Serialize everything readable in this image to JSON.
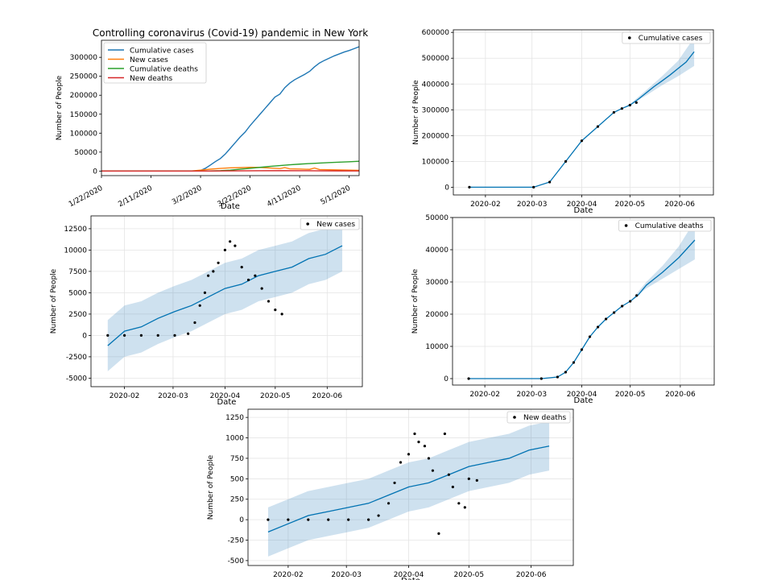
{
  "chart_data": [
    {
      "id": "overview",
      "type": "line",
      "title": "Controlling coronavirus (Covid-19) pandemic in New York",
      "xlabel": "Date",
      "ylabel": "Number of People",
      "xlim": [
        0,
        104
      ],
      "ylim": [
        -12000,
        345000
      ],
      "yticks": [
        0,
        50000,
        100000,
        150000,
        200000,
        250000,
        300000
      ],
      "xticks": [
        {
          "day": 0,
          "label": "1/22/2020"
        },
        {
          "day": 20,
          "label": "2/11/2020"
        },
        {
          "day": 40,
          "label": "3/2/2020"
        },
        {
          "day": 60,
          "label": "3/22/2020"
        },
        {
          "day": 80,
          "label": "4/11/2020"
        },
        {
          "day": 100,
          "label": "5/1/2020"
        }
      ],
      "legend": [
        "Cumulative cases",
        "New cases",
        "Cumulative deaths",
        "New deaths"
      ],
      "series": [
        {
          "name": "Cumulative cases",
          "color": "#1f77b4",
          "x": [
            0,
            36,
            38,
            40,
            42,
            44,
            46,
            48,
            50,
            52,
            54,
            56,
            58,
            60,
            62,
            64,
            66,
            68,
            70,
            72,
            74,
            76,
            78,
            80,
            82,
            84,
            86,
            88,
            90,
            92,
            94,
            96,
            98,
            100,
            102,
            104
          ],
          "y": [
            0,
            0,
            100,
            1500,
            7500,
            16000,
            25000,
            33000,
            45000,
            60000,
            75000,
            90000,
            103000,
            120000,
            135000,
            150000,
            165000,
            180000,
            195000,
            203000,
            220000,
            232000,
            241000,
            248000,
            255000,
            263000,
            275000,
            285000,
            292000,
            298000,
            304000,
            309000,
            314000,
            318000,
            323000,
            328000
          ]
        },
        {
          "name": "New cases",
          "color": "#ff7f0e",
          "x": [
            0,
            36,
            40,
            44,
            48,
            52,
            56,
            60,
            64,
            68,
            72,
            74,
            76,
            80,
            84,
            86,
            88,
            92,
            96,
            100,
            104
          ],
          "y": [
            0,
            0,
            2500,
            5000,
            7000,
            8500,
            9000,
            10000,
            9500,
            8000,
            6500,
            9000,
            6000,
            5500,
            4500,
            8000,
            4000,
            3500,
            3000,
            2500,
            2000
          ]
        },
        {
          "name": "Cumulative deaths",
          "color": "#2ca02c",
          "x": [
            0,
            40,
            44,
            48,
            52,
            56,
            60,
            64,
            68,
            72,
            76,
            80,
            84,
            88,
            92,
            96,
            100,
            104
          ],
          "y": [
            0,
            0,
            200,
            1000,
            2500,
            4800,
            7300,
            9800,
            12300,
            14500,
            16500,
            18300,
            19800,
            21000,
            22500,
            23500,
            24500,
            25800
          ]
        },
        {
          "name": "New deaths",
          "color": "#d62728",
          "x": [
            0,
            40,
            48,
            56,
            64,
            72,
            80,
            88,
            96,
            104
          ],
          "y": [
            0,
            0,
            300,
            700,
            900,
            1000,
            900,
            700,
            500,
            400
          ]
        }
      ]
    },
    {
      "id": "forecast-cumulative-cases",
      "type": "line",
      "title": "",
      "xlabel": "Date",
      "ylabel": "Number of People",
      "xlim": [
        -10,
        152
      ],
      "ylim": [
        -30000,
        610000
      ],
      "yticks": [
        0,
        100000,
        200000,
        300000,
        400000,
        500000,
        600000
      ],
      "xticks": [
        {
          "day": 10,
          "label": "2020-02"
        },
        {
          "day": 39,
          "label": "2020-03"
        },
        {
          "day": 70,
          "label": "2020-04"
        },
        {
          "day": 100,
          "label": "2020-05"
        },
        {
          "day": 131,
          "label": "2020-06"
        }
      ],
      "legend": [
        "Cumulative cases"
      ],
      "observed": {
        "x": [
          0,
          40,
          50,
          60,
          70,
          80,
          90,
          95,
          100,
          104
        ],
        "y": [
          0,
          0,
          20000,
          100000,
          180000,
          235000,
          290000,
          305000,
          318000,
          328000
        ]
      },
      "forecast": {
        "x": [
          0,
          40,
          50,
          60,
          70,
          80,
          90,
          95,
          100,
          105,
          110,
          115,
          120,
          125,
          130,
          135,
          140
        ],
        "y": [
          0,
          0,
          20000,
          100000,
          180000,
          235000,
          290000,
          305000,
          318000,
          340000,
          365000,
          390000,
          412000,
          435000,
          460000,
          485000,
          525000
        ]
      },
      "interval": {
        "x": [
          90,
          100,
          110,
          120,
          130,
          140
        ],
        "lower": [
          290000,
          318000,
          355000,
          395000,
          430000,
          470000
        ],
        "upper": [
          290000,
          322000,
          375000,
          430000,
          490000,
          580000
        ]
      }
    },
    {
      "id": "forecast-new-cases",
      "type": "line",
      "title": "",
      "xlabel": "Date",
      "ylabel": "Number of People",
      "xlim": [
        -10,
        152
      ],
      "ylim": [
        -6000,
        14000
      ],
      "yticks": [
        -5000,
        -2500,
        0,
        2500,
        5000,
        7500,
        10000,
        12500
      ],
      "xticks": [
        {
          "day": 10,
          "label": "2020-02"
        },
        {
          "day": 39,
          "label": "2020-03"
        },
        {
          "day": 70,
          "label": "2020-04"
        },
        {
          "day": 100,
          "label": "2020-05"
        },
        {
          "day": 131,
          "label": "2020-06"
        }
      ],
      "legend": [
        "New cases"
      ],
      "observed": {
        "x": [
          0,
          10,
          20,
          30,
          40,
          48,
          52,
          55,
          58,
          60,
          63,
          66,
          70,
          73,
          76,
          80,
          84,
          88,
          92,
          96,
          100,
          104
        ],
        "y": [
          0,
          0,
          0,
          0,
          0,
          200,
          1500,
          3500,
          5000,
          7000,
          7500,
          8500,
          10000,
          11000,
          10500,
          8000,
          6500,
          7000,
          5500,
          4000,
          3000,
          2500
        ]
      },
      "forecast": {
        "x": [
          0,
          10,
          20,
          30,
          40,
          50,
          60,
          70,
          80,
          90,
          100,
          110,
          120,
          130,
          140
        ],
        "y": [
          -1200,
          500,
          1000,
          2000,
          2800,
          3500,
          4500,
          5500,
          6000,
          7000,
          7500,
          8000,
          9000,
          9500,
          10500
        ]
      },
      "interval": {
        "x": [
          0,
          10,
          20,
          30,
          40,
          50,
          60,
          70,
          80,
          90,
          100,
          110,
          120,
          130,
          140
        ],
        "lower": [
          -4200,
          -2500,
          -2000,
          -1000,
          -200,
          500,
          1500,
          2500,
          3000,
          4000,
          4500,
          5000,
          6000,
          6500,
          7500
        ],
        "upper": [
          1800,
          3500,
          4000,
          5000,
          5800,
          6500,
          7500,
          8500,
          9000,
          10000,
          10500,
          11000,
          12000,
          12500,
          13500
        ]
      }
    },
    {
      "id": "forecast-cumulative-deaths",
      "type": "line",
      "title": "",
      "xlabel": "Date",
      "ylabel": "Number of People",
      "xlim": [
        -10,
        152
      ],
      "ylim": [
        -2000,
        50000
      ],
      "yticks": [
        0,
        10000,
        20000,
        30000,
        40000,
        50000
      ],
      "xticks": [
        {
          "day": 10,
          "label": "2020-02"
        },
        {
          "day": 39,
          "label": "2020-03"
        },
        {
          "day": 70,
          "label": "2020-04"
        },
        {
          "day": 100,
          "label": "2020-05"
        },
        {
          "day": 131,
          "label": "2020-06"
        }
      ],
      "legend": [
        "Cumulative deaths"
      ],
      "observed": {
        "x": [
          0,
          45,
          55,
          60,
          65,
          70,
          75,
          80,
          85,
          90,
          95,
          100,
          104
        ],
        "y": [
          0,
          0,
          500,
          2000,
          5000,
          9000,
          13000,
          16000,
          18500,
          20500,
          22500,
          24000,
          25800
        ]
      },
      "forecast": {
        "x": [
          0,
          45,
          55,
          60,
          65,
          70,
          75,
          80,
          85,
          90,
          95,
          100,
          105,
          110,
          120,
          130,
          140
        ],
        "y": [
          0,
          0,
          500,
          2000,
          5000,
          9000,
          13000,
          16000,
          18500,
          20500,
          22500,
          24000,
          26000,
          29000,
          33000,
          37500,
          43000
        ]
      },
      "interval": {
        "x": [
          100,
          110,
          120,
          130,
          140
        ],
        "lower": [
          24000,
          28000,
          31000,
          34000,
          37000
        ],
        "upper": [
          24000,
          30000,
          35000,
          41000,
          49000
        ]
      }
    },
    {
      "id": "forecast-new-deaths",
      "type": "line",
      "title": "",
      "xlabel": "Date",
      "ylabel": "Number of People",
      "xlim": [
        -10,
        152
      ],
      "ylim": [
        -560,
        1350
      ],
      "yticks": [
        -500,
        -250,
        0,
        250,
        500,
        750,
        1000,
        1250
      ],
      "xticks": [
        {
          "day": 10,
          "label": "2020-02"
        },
        {
          "day": 39,
          "label": "2020-03"
        },
        {
          "day": 70,
          "label": "2020-04"
        },
        {
          "day": 100,
          "label": "2020-05"
        },
        {
          "day": 131,
          "label": "2020-06"
        }
      ],
      "legend": [
        "New deaths"
      ],
      "observed": {
        "x": [
          0,
          10,
          20,
          30,
          40,
          50,
          55,
          60,
          63,
          66,
          70,
          73,
          75,
          78,
          80,
          82,
          85,
          88,
          90,
          92,
          95,
          98,
          100,
          104
        ],
        "y": [
          0,
          0,
          0,
          0,
          0,
          0,
          50,
          200,
          450,
          700,
          800,
          1050,
          950,
          900,
          750,
          600,
          -170,
          1050,
          550,
          400,
          200,
          150,
          500,
          480
        ]
      },
      "forecast": {
        "x": [
          0,
          10,
          20,
          30,
          40,
          50,
          60,
          70,
          80,
          90,
          100,
          110,
          120,
          130,
          140
        ],
        "y": [
          -150,
          -50,
          50,
          100,
          150,
          200,
          300,
          400,
          450,
          550,
          650,
          700,
          750,
          850,
          900
        ]
      },
      "interval": {
        "x": [
          0,
          10,
          20,
          30,
          40,
          50,
          60,
          70,
          80,
          90,
          100,
          110,
          120,
          130,
          140
        ],
        "lower": [
          -450,
          -350,
          -250,
          -200,
          -150,
          -100,
          0,
          100,
          150,
          250,
          350,
          400,
          450,
          550,
          600
        ],
        "upper": [
          150,
          250,
          350,
          400,
          450,
          500,
          600,
          700,
          750,
          850,
          950,
          1000,
          1050,
          1150,
          1200
        ]
      }
    }
  ]
}
